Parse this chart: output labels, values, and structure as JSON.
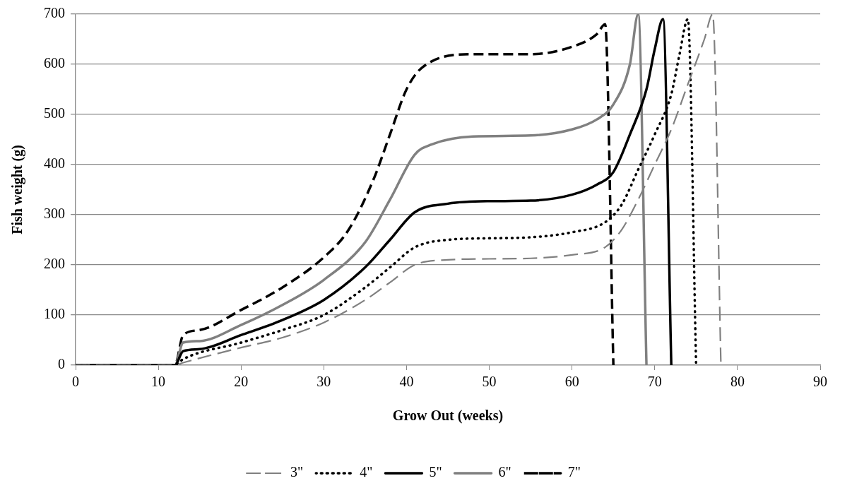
{
  "chart_data": {
    "type": "line",
    "xlabel": "Grow Out (weeks)",
    "ylabel": "Fish weight (g)",
    "xlim": [
      0,
      90
    ],
    "xticks": [
      0,
      10,
      20,
      30,
      40,
      50,
      60,
      70,
      80,
      90
    ],
    "ylim": [
      0,
      700
    ],
    "yticks": [
      0,
      100,
      200,
      300,
      400,
      500,
      600,
      700
    ],
    "grid": "y",
    "legend": "bottom",
    "marker": "none",
    "series": [
      {
        "name": "3\"",
        "color": "#808080",
        "line_style": "dashed",
        "x": [
          0,
          12,
          13,
          20,
          25,
          30,
          35,
          38,
          41,
          45,
          50,
          55,
          60,
          64,
          66,
          68,
          70,
          72,
          74,
          76,
          77,
          78
        ],
        "values": [
          0,
          0,
          5,
          35,
          55,
          85,
          130,
          165,
          200,
          210,
          212,
          213,
          220,
          235,
          270,
          330,
          400,
          470,
          560,
          650,
          700,
          0
        ]
      },
      {
        "name": "4\"",
        "color": "#000000",
        "line_style": "dotted",
        "x": [
          0,
          12,
          13,
          20,
          25,
          30,
          35,
          38,
          41,
          45,
          50,
          55,
          60,
          64,
          66,
          68,
          70,
          72,
          73,
          74,
          75
        ],
        "values": [
          0,
          0,
          12,
          45,
          70,
          100,
          155,
          195,
          235,
          250,
          253,
          255,
          265,
          285,
          320,
          390,
          460,
          540,
          620,
          690,
          0
        ]
      },
      {
        "name": "5\"",
        "color": "#000000",
        "line_style": "solid",
        "x": [
          0,
          12,
          13,
          15,
          20,
          25,
          30,
          35,
          38,
          41,
          45,
          50,
          55,
          60,
          63,
          65,
          67,
          69,
          70,
          71,
          72
        ],
        "values": [
          0,
          0,
          28,
          32,
          60,
          90,
          130,
          195,
          250,
          305,
          322,
          327,
          328,
          340,
          360,
          385,
          460,
          550,
          630,
          690,
          0
        ]
      },
      {
        "name": "6\"",
        "color": "#808080",
        "line_style": "solid",
        "x": [
          0,
          12,
          13,
          15,
          20,
          25,
          30,
          35,
          38,
          41,
          43,
          48,
          55,
          60,
          63,
          65,
          67,
          68,
          69
        ],
        "values": [
          0,
          0,
          45,
          48,
          80,
          120,
          170,
          245,
          330,
          420,
          440,
          456,
          458,
          470,
          490,
          520,
          600,
          700,
          0
        ]
      },
      {
        "name": "7\"",
        "color": "#000000",
        "line_style": "dashed",
        "x": [
          0,
          12,
          13,
          15,
          20,
          25,
          30,
          33,
          36,
          38,
          40,
          42,
          48,
          55,
          60,
          63,
          64,
          65
        ],
        "values": [
          0,
          0,
          60,
          70,
          110,
          155,
          215,
          270,
          370,
          460,
          550,
          595,
          620,
          620,
          635,
          660,
          680,
          0
        ]
      }
    ]
  }
}
